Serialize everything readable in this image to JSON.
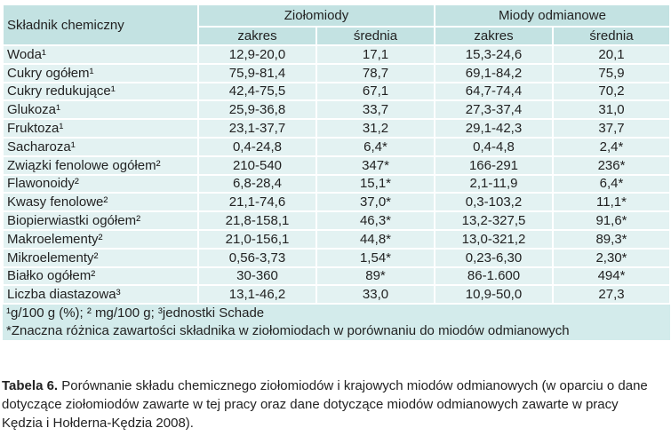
{
  "table": {
    "header": {
      "component": "Składnik chemiczny",
      "groups": [
        "Ziołomiody",
        "Miody odmianowe"
      ],
      "subheaders": [
        "zakres",
        "średnia",
        "zakres",
        "średnia"
      ]
    },
    "rows": [
      [
        "Woda¹",
        "12,9-20,0",
        "17,1",
        "15,3-24,6",
        "20,1"
      ],
      [
        "Cukry ogółem¹",
        "75,9-81,4",
        "78,7",
        "69,1-84,2",
        "75,9"
      ],
      [
        "Cukry redukujące¹",
        "42,4-75,5",
        "67,1",
        "64,7-74,4",
        "70,2"
      ],
      [
        "Glukoza¹",
        "25,9-36,8",
        "33,7",
        "27,3-37,4",
        "31,0"
      ],
      [
        "Fruktoza¹",
        "23,1-37,7",
        "31,2",
        "29,1-42,3",
        "37,7"
      ],
      [
        "Sacharoza¹",
        "0,4-24,8",
        "6,4*",
        "0,4-4,8",
        "2,4*"
      ],
      [
        "Związki fenolowe ogółem²",
        "210-540",
        "347*",
        "166-291",
        "236*"
      ],
      [
        "Flawonoidy²",
        "6,8-28,4",
        "15,1*",
        "2,1-11,9",
        "6,4*"
      ],
      [
        "Kwasy fenolowe²",
        "21,1-74,6",
        "37,0*",
        "0,3-103,2",
        "11,1*"
      ],
      [
        "Biopierwiastki ogółem²",
        "21,8-158,1",
        "46,3*",
        "13,2-327,5",
        "91,6*"
      ],
      [
        "Makroelementy²",
        "21,0-156,1",
        "44,8*",
        "13,0-321,2",
        "89,3*"
      ],
      [
        "Mikroelementy²",
        "0,56-3,73",
        "1,54*",
        "0,23-6,30",
        "2,30*"
      ],
      [
        "Białko ogółem²",
        "30-360",
        "89*",
        "86-1.600",
        "494*"
      ],
      [
        "Liczba diastazowa³",
        "13,1-46,2",
        "33,0",
        "10,9-50,0",
        "27,3"
      ]
    ],
    "footnotes": [
      "¹g/100 g (%); ² mg/100 g; ³jednostki Schade",
      "*Znaczna różnica zawartości składnika w ziołomiodach w porównaniu do miodów odmianowych"
    ]
  },
  "caption": {
    "label": "Tabela 6.",
    "text": "Porównanie składu chemicznego ziołomiodów i krajowych miodów odmianowych (w oparciu o dane dotyczące ziołomiodów zawarte w tej pracy oraz dane dotyczące miodów odmianowych zawarte w pracy Kędzia i Hołderna-Kędzia 2008)."
  }
}
